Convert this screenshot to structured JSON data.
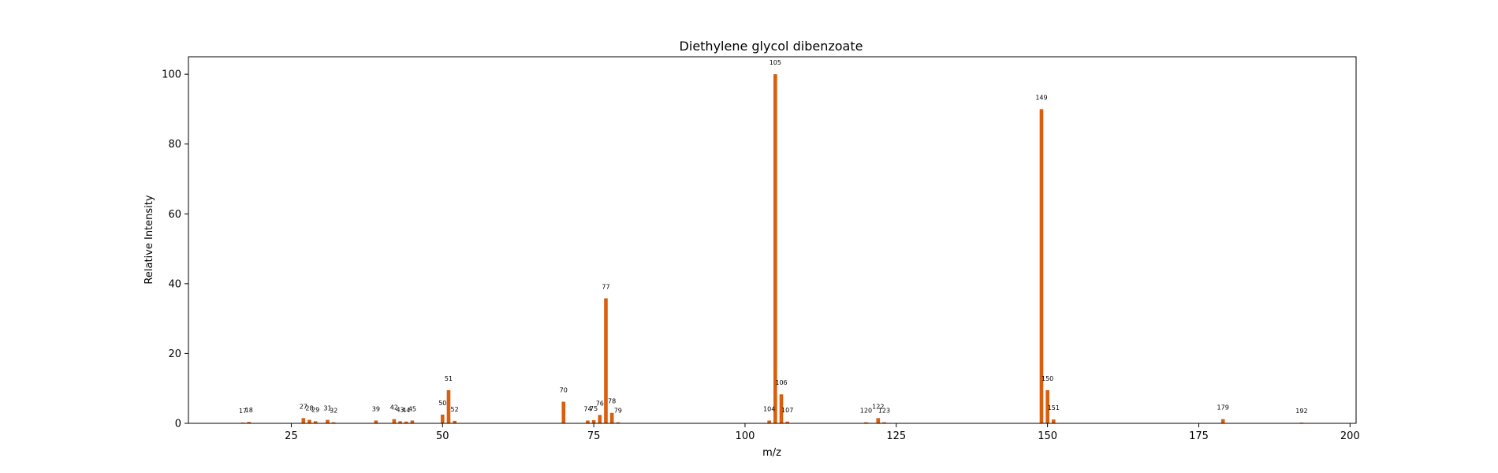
{
  "chart_data": {
    "type": "bar",
    "title": "Diethylene glycol dibenzoate",
    "xlabel": "m/z",
    "ylabel": "Relative Intensity",
    "xlim": [
      8,
      201
    ],
    "ylim": [
      0,
      105
    ],
    "xticks": [
      25,
      50,
      75,
      100,
      125,
      150,
      175,
      200
    ],
    "yticks": [
      0,
      20,
      40,
      60,
      80,
      100
    ],
    "grid": false,
    "bar_color": "#d95f0e",
    "peaks": [
      {
        "mz": 17,
        "intensity": 0.2
      },
      {
        "mz": 18,
        "intensity": 0.4
      },
      {
        "mz": 27,
        "intensity": 1.5
      },
      {
        "mz": 28,
        "intensity": 1.0
      },
      {
        "mz": 29,
        "intensity": 0.6
      },
      {
        "mz": 31,
        "intensity": 1.0
      },
      {
        "mz": 32,
        "intensity": 0.3
      },
      {
        "mz": 39,
        "intensity": 0.8
      },
      {
        "mz": 42,
        "intensity": 1.2
      },
      {
        "mz": 43,
        "intensity": 0.6
      },
      {
        "mz": 44,
        "intensity": 0.5
      },
      {
        "mz": 45,
        "intensity": 0.8
      },
      {
        "mz": 50,
        "intensity": 2.5
      },
      {
        "mz": 51,
        "intensity": 9.5
      },
      {
        "mz": 52,
        "intensity": 0.7
      },
      {
        "mz": 70,
        "intensity": 6.2
      },
      {
        "mz": 74,
        "intensity": 0.8
      },
      {
        "mz": 75,
        "intensity": 0.9
      },
      {
        "mz": 76,
        "intensity": 2.4
      },
      {
        "mz": 77,
        "intensity": 35.8
      },
      {
        "mz": 78,
        "intensity": 3.0
      },
      {
        "mz": 79,
        "intensity": 0.3
      },
      {
        "mz": 104,
        "intensity": 0.8
      },
      {
        "mz": 105,
        "intensity": 100.0
      },
      {
        "mz": 106,
        "intensity": 8.3
      },
      {
        "mz": 107,
        "intensity": 0.5
      },
      {
        "mz": 120,
        "intensity": 0.3
      },
      {
        "mz": 122,
        "intensity": 1.5
      },
      {
        "mz": 123,
        "intensity": 0.3
      },
      {
        "mz": 149,
        "intensity": 90.0
      },
      {
        "mz": 150,
        "intensity": 9.5
      },
      {
        "mz": 151,
        "intensity": 1.1
      },
      {
        "mz": 179,
        "intensity": 1.2
      },
      {
        "mz": 192,
        "intensity": 0.2
      }
    ]
  }
}
